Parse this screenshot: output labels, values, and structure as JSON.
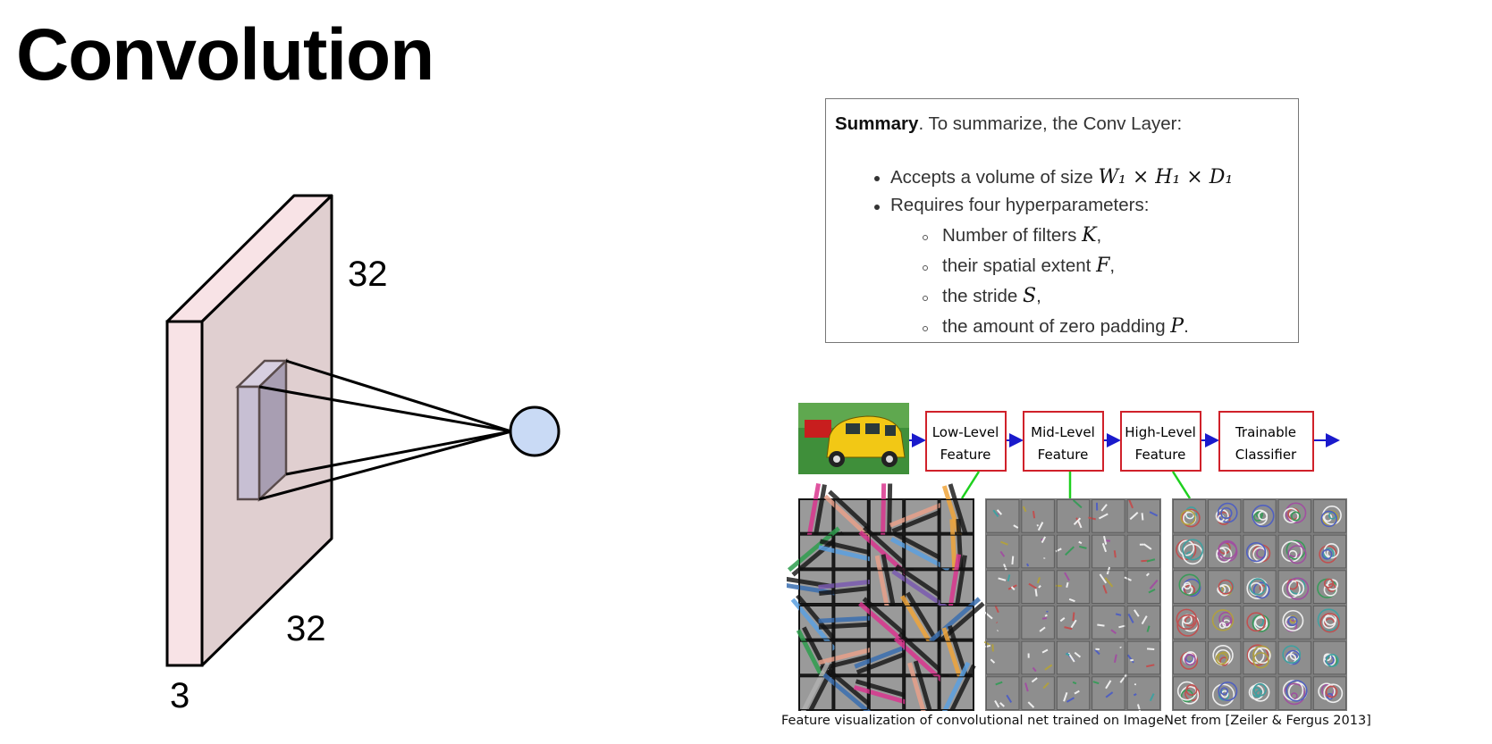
{
  "slide": {
    "title": "Convolution"
  },
  "volume": {
    "height_label": "32",
    "width_label": "32",
    "depth_label": "3",
    "colors": {
      "slab_front": "#f8e3e6",
      "slab_face": "#e0cfd0",
      "filter_front": "#c7bfd3",
      "filter_side": "#a89eb2",
      "neuron_fill": "#c9daf5"
    }
  },
  "summary": {
    "heading_bold": "Summary",
    "heading_rest": ". To summarize, the Conv Layer:",
    "items": [
      {
        "text": "Accepts a volume of size ",
        "math": "W₁ × H₁ × D₁",
        "after": ""
      },
      {
        "text": "Requires four hyperparameters:",
        "math": "",
        "after": ""
      }
    ],
    "subitems": [
      {
        "text": "Number of filters ",
        "math": "K",
        "after": ","
      },
      {
        "text": "their spatial extent ",
        "math": "F",
        "after": ","
      },
      {
        "text": "the stride ",
        "math": "S",
        "after": ","
      },
      {
        "text": "the amount of zero padding ",
        "math": "P",
        "after": "."
      }
    ]
  },
  "pipeline": {
    "stages": [
      {
        "line1": "Low-Level",
        "line2": "Feature"
      },
      {
        "line1": "Mid-Level",
        "line2": "Feature"
      },
      {
        "line1": "High-Level",
        "line2": "Feature"
      },
      {
        "line1": "Trainable",
        "line2": "Classifier"
      }
    ],
    "colors": {
      "box_border": "#d0212a",
      "arrow": "#1a1acc",
      "connector": "#1ed01e",
      "car": "#f2c815",
      "grid_bg": "#8a8a8a"
    }
  },
  "caption": "Feature visualization of convolutional net trained on ImageNet from [Zeiler & Fergus 2013]"
}
